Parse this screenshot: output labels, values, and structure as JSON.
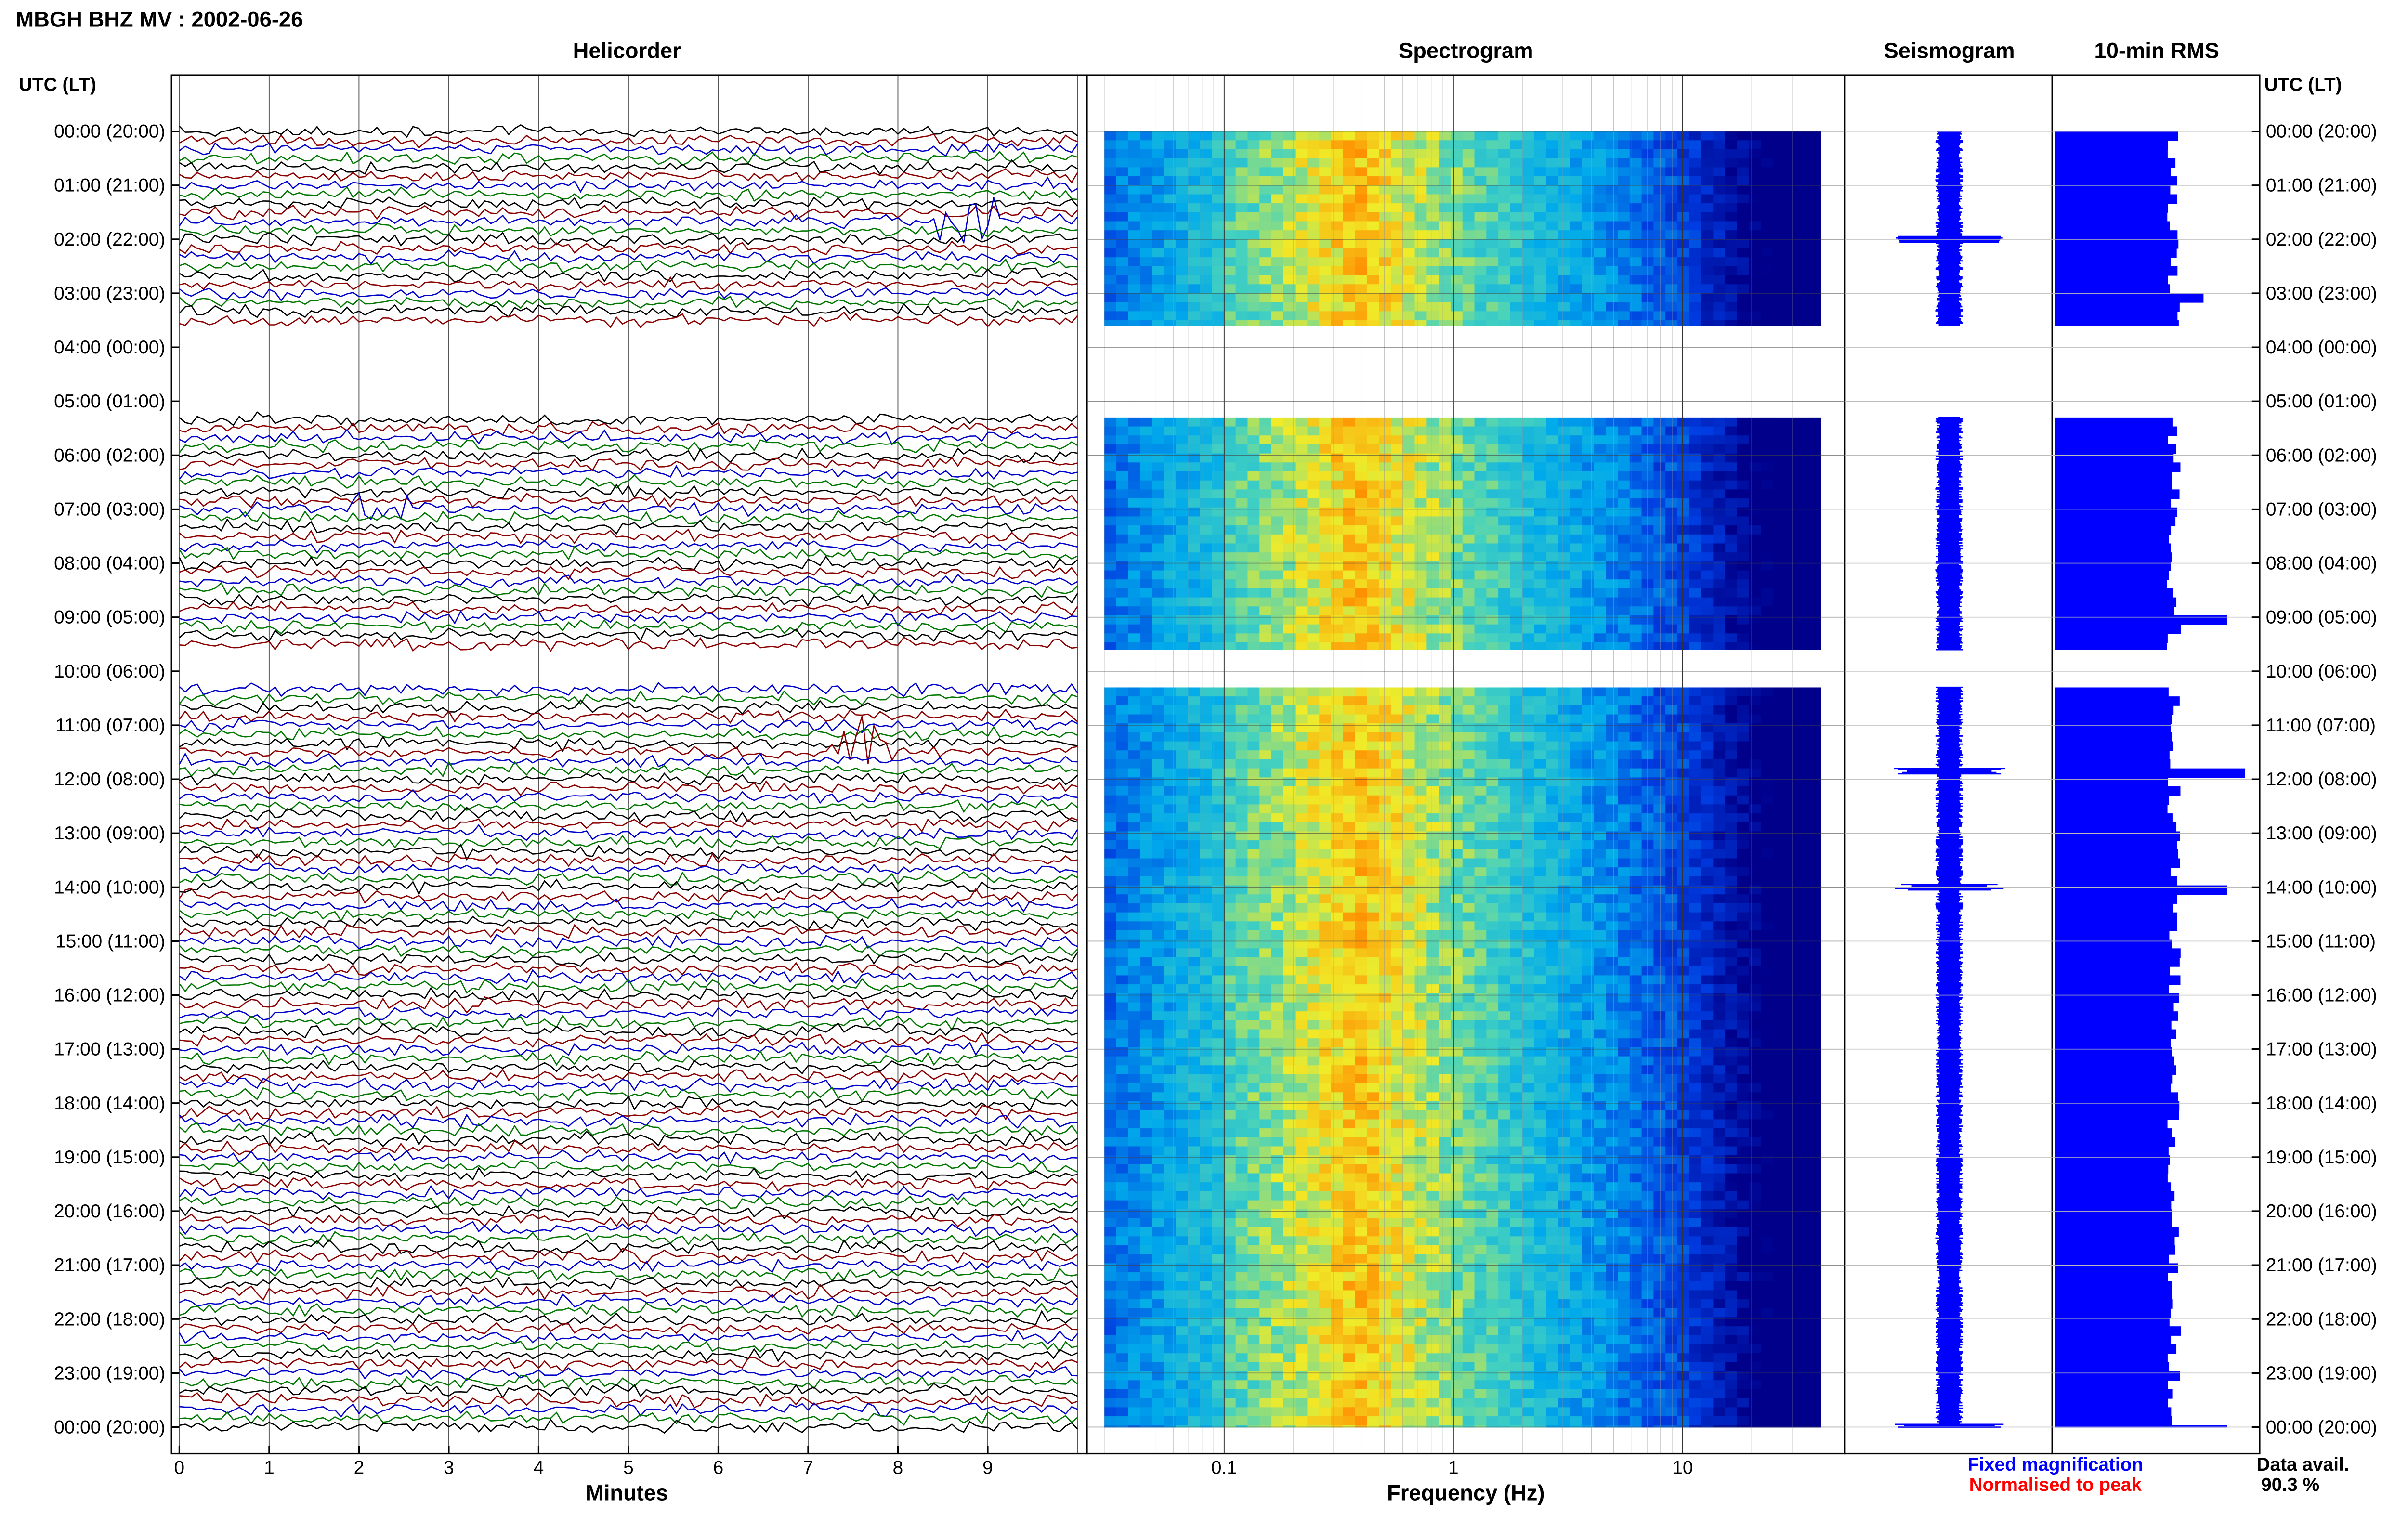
{
  "header": {
    "title": "MBGH BHZ MV : 2002-06-26",
    "panels": [
      "Helicorder",
      "Spectrogram",
      "Seismogram",
      "10-min RMS"
    ],
    "axis_label_left": "UTC (LT)",
    "axis_label_right": "UTC (LT)"
  },
  "footer": {
    "xlabel_helicorder": "Minutes",
    "xlabel_spectrogram": "Frequency (Hz)",
    "legend_fixed": "Fixed magnification",
    "legend_normalised": "Normalised to peak",
    "data_avail_label": "Data avail.",
    "data_avail_value": "90.3 %"
  },
  "colors": {
    "trace_cycle": [
      "#000000",
      "#8b0000",
      "#0000cc",
      "#007700"
    ],
    "fixed_magnification": "#0000ff",
    "normalised_to_peak": "#ff0000",
    "rms_bar": "#0000ff",
    "spectro_low": "#00008b",
    "spectro_high": "#ff0000"
  },
  "chart_data": [
    {
      "type": "line",
      "title": "Helicorder",
      "xlabel": "Minutes",
      "xlim": [
        0,
        10
      ],
      "x_ticks": [
        "0",
        "1",
        "2",
        "3",
        "4",
        "5",
        "6",
        "7",
        "8",
        "9"
      ],
      "y_ticks": [
        "00:00 (20:00)",
        "01:00 (21:00)",
        "02:00 (22:00)",
        "03:00 (23:00)",
        "04:00 (00:00)",
        "05:00 (01:00)",
        "06:00 (02:00)",
        "07:00 (03:00)",
        "08:00 (04:00)",
        "09:00 (05:00)",
        "10:00 (06:00)",
        "11:00 (07:00)",
        "12:00 (08:00)",
        "13:00 (09:00)",
        "14:00 (10:00)",
        "15:00 (11:00)",
        "16:00 (12:00)",
        "17:00 (13:00)",
        "18:00 (14:00)",
        "19:00 (15:00)",
        "20:00 (16:00)",
        "21:00 (17:00)",
        "22:00 (18:00)",
        "23:00 (19:00)",
        "00:00 (20:00)"
      ],
      "y_ticks_right": [
        "00:00 (20:00)",
        "01:00 (21:00)",
        "02:00 (22:00)",
        "03:00 (23:00)",
        "04:00 (00:00)",
        "05:00 (01:00)",
        "06:00 (02:00)",
        "07:00 (03:00)",
        "08:00 (04:00)",
        "09:00 (05:00)",
        "10:00 (06:00)",
        "11:00 (07:00)",
        "12:00 (08:00)",
        "13:00 (09:00)",
        "14:00 (10:00)",
        "15:00 (11:00)",
        "16:00 (12:00)",
        "17:00 (13:00)",
        "18:00 (14:00)",
        "19:00 (15:00)",
        "20:00 (16:00)",
        "21:00 (17:00)",
        "22:00 (18:00)",
        "23:00 (19:00)",
        "00:00 (20:00)"
      ],
      "hours": 24,
      "traces_per_hour": 6,
      "data_hour_ranges": [
        [
          0,
          3.6
        ],
        [
          5.3,
          9.6
        ],
        [
          10.3,
          24
        ]
      ],
      "events": [
        {
          "hour": 1.65,
          "minute": 8.8,
          "amplitude": 1.5
        },
        {
          "hour": 7.0,
          "minute": 2.2,
          "amplitude": 1.0
        },
        {
          "hour": 11.5,
          "minute": 7.6,
          "amplitude": 2.5
        }
      ]
    },
    {
      "type": "heatmap",
      "title": "Spectrogram",
      "xlabel": "Frequency (Hz)",
      "x_scale": "log",
      "xlim": [
        0.02,
        50
      ],
      "x_ticks": [
        "0.1",
        "1",
        "10"
      ],
      "peak_band_hz": [
        0.25,
        0.6
      ],
      "data_hour_ranges": [
        [
          0,
          3.6
        ],
        [
          5.3,
          9.6
        ],
        [
          10.3,
          24
        ]
      ]
    },
    {
      "type": "line",
      "title": "Seismogram",
      "data_hour_ranges": [
        [
          0,
          3.6
        ],
        [
          5.3,
          9.6
        ],
        [
          10.3,
          24
        ]
      ],
      "spikes_hour": [
        2.0,
        11.85,
        14.0,
        24.0
      ]
    },
    {
      "type": "bar",
      "title": "10-min RMS",
      "orientation": "horizontal",
      "data_hour_ranges": [
        [
          0,
          3.6
        ],
        [
          5.3,
          9.6
        ],
        [
          10.3,
          24
        ]
      ],
      "baseline_level": 1.0,
      "peaks": [
        {
          "hour": 3.0,
          "value": 1.25
        },
        {
          "hour": 9.0,
          "value": 1.45
        },
        {
          "hour": 11.85,
          "value": 1.6
        },
        {
          "hour": 13.9,
          "value": 1.45
        },
        {
          "hour": 24.0,
          "value": 1.45
        }
      ]
    }
  ]
}
